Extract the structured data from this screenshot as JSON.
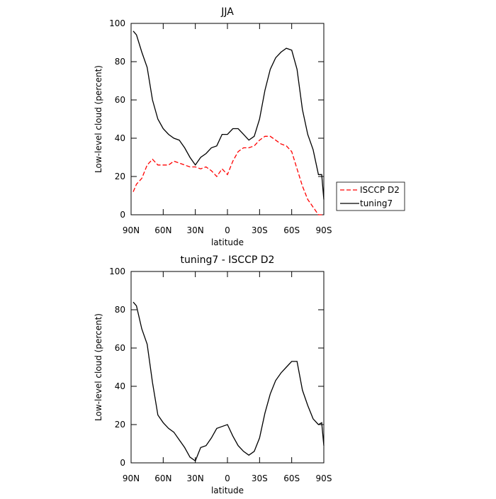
{
  "chart_data": [
    {
      "type": "line",
      "title": "JJA",
      "xlabel": "latitude",
      "ylabel": "Low-level cloud (percent)",
      "x": [
        88,
        85,
        80,
        75,
        70,
        65,
        60,
        55,
        50,
        45,
        40,
        35,
        30,
        25,
        20,
        15,
        10,
        5,
        0,
        -5,
        -10,
        -15,
        -20,
        -25,
        -30,
        -35,
        -40,
        -45,
        -50,
        -55,
        -60,
        -65,
        -70,
        -75,
        -80,
        -85,
        -88,
        -90
      ],
      "series": [
        {
          "name": "ISCCP D2",
          "color": "#ff0000",
          "linestyle": "dashed",
          "values": [
            12,
            16,
            19,
            26,
            29,
            26,
            26,
            26,
            28,
            27,
            26,
            25,
            25,
            24,
            25,
            23,
            20,
            24,
            21,
            28,
            33,
            35,
            35,
            36,
            39,
            41,
            41,
            39,
            37,
            36,
            33,
            24,
            15,
            8,
            4,
            0,
            0,
            0
          ]
        },
        {
          "name": "tuning7",
          "color": "#000000",
          "linestyle": "solid",
          "values": [
            96,
            94,
            85,
            77,
            60,
            50,
            45,
            42,
            40,
            39,
            35,
            30,
            26,
            30,
            32,
            35,
            36,
            42,
            42,
            45,
            45,
            42,
            39,
            41,
            50,
            65,
            76,
            82,
            85,
            87,
            86,
            76,
            55,
            42,
            34,
            21,
            21,
            8
          ]
        }
      ],
      "xlim": [
        90,
        -90
      ],
      "xticks": [
        {
          "value": 90,
          "label": "90N"
        },
        {
          "value": 60,
          "label": "60N"
        },
        {
          "value": 30,
          "label": "30N"
        },
        0,
        {
          "value": -30,
          "label": "30S"
        },
        {
          "value": -60,
          "label": "60S"
        },
        {
          "value": -90,
          "label": "90S"
        }
      ],
      "ylim": [
        0,
        100
      ],
      "yticks": [
        0,
        20,
        40,
        60,
        80,
        100
      ],
      "grid": false,
      "legend": "right"
    },
    {
      "type": "line",
      "title": "tuning7 - ISCCP D2",
      "xlabel": "latitude",
      "ylabel": "Low-level cloud (percent)",
      "x": [
        88,
        85,
        80,
        75,
        70,
        65,
        60,
        55,
        50,
        45,
        40,
        35,
        30,
        25,
        20,
        15,
        10,
        5,
        0,
        -5,
        -10,
        -15,
        -20,
        -25,
        -30,
        -35,
        -40,
        -45,
        -50,
        -55,
        -60,
        -65,
        -70,
        -75,
        -80,
        -85,
        -88,
        -90
      ],
      "series": [
        {
          "color": "#000000",
          "linestyle": "solid",
          "values": [
            84,
            82,
            70,
            62,
            42,
            25,
            21,
            18,
            16,
            12,
            8,
            3,
            1,
            8,
            9,
            13,
            18,
            19,
            20,
            14,
            9,
            6,
            4,
            6,
            13,
            26,
            36,
            43,
            47,
            50,
            53,
            53,
            38,
            30,
            23,
            20,
            21,
            9
          ]
        }
      ],
      "xlim": [
        90,
        -90
      ],
      "xticks": [
        {
          "value": 90,
          "label": "90N"
        },
        {
          "value": 60,
          "label": "60N"
        },
        {
          "value": 30,
          "label": "30N"
        },
        0,
        {
          "value": -30,
          "label": "30S"
        },
        {
          "value": -60,
          "label": "60S"
        },
        {
          "value": -90,
          "label": "90S"
        }
      ],
      "ylim": [
        0,
        100
      ],
      "yticks": [
        0,
        20,
        40,
        60,
        80,
        100
      ],
      "grid": false
    }
  ]
}
